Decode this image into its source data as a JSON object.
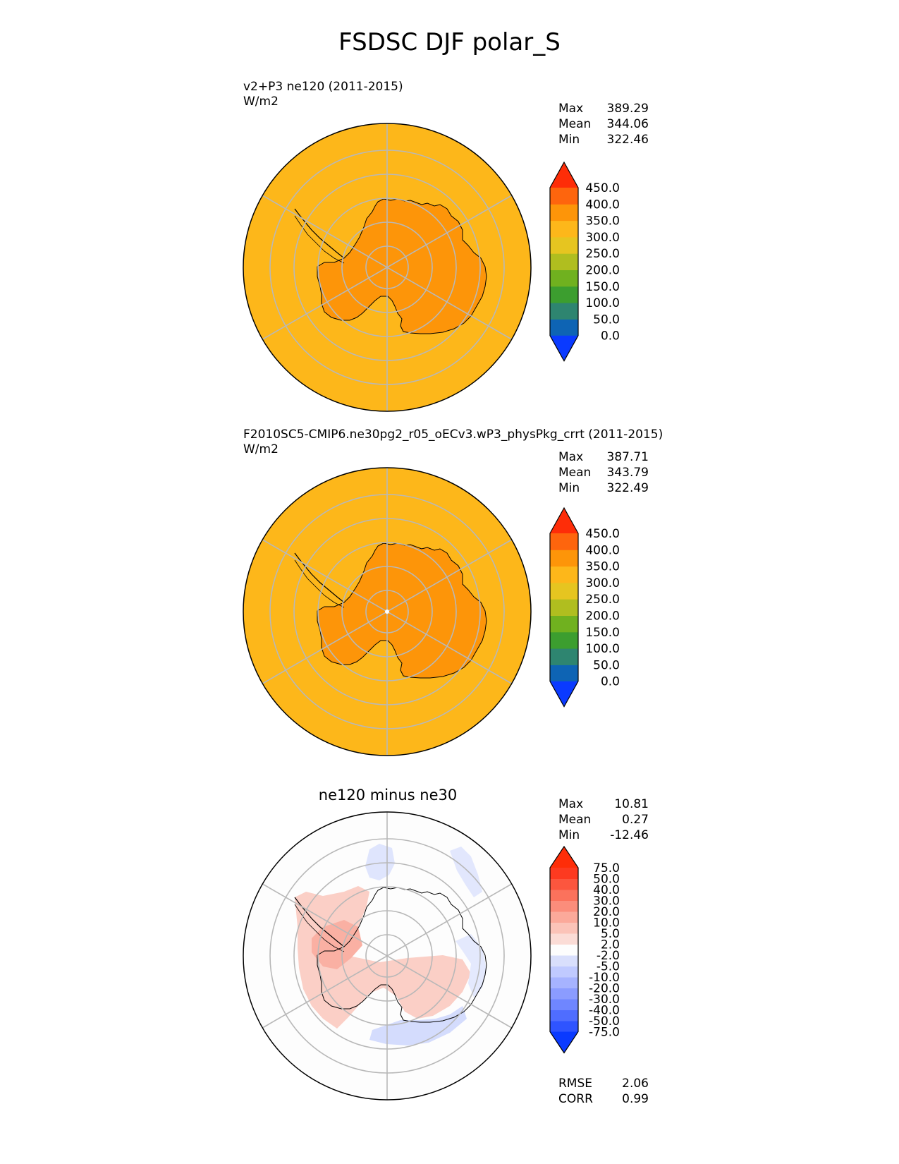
{
  "title": "FSDSC DJF polar_S",
  "panels": [
    {
      "id": "test",
      "title": "v2+P3 ne120 (2011-2015)",
      "units": "W/m2",
      "stats": {
        "max_label": "Max",
        "max": "389.29",
        "mean_label": "Mean",
        "mean": "344.06",
        "min_label": "Min",
        "min": "322.46"
      },
      "ocean_color": "#fdb71a",
      "land_color": "#fd9509",
      "colorbar": {
        "colors": [
          "#0a3aff",
          "#0e64b4",
          "#2e8570",
          "#3c9e2f",
          "#70b11f",
          "#b0be1f",
          "#e6c520",
          "#fdb71a",
          "#fd9509",
          "#fe650d",
          "#fe2d08"
        ],
        "labels": [
          "0.0",
          "50.0",
          "100.0",
          "150.0",
          "200.0",
          "250.0",
          "300.0",
          "350.0",
          "400.0",
          "450.0"
        ]
      }
    },
    {
      "id": "reference",
      "title": "F2010SC5-CMIP6.ne30pg2_r05_oECv3.wP3_physPkg_crrt (2011-2015)",
      "units": "W/m2",
      "stats": {
        "max_label": "Max",
        "max": "387.71",
        "mean_label": "Mean",
        "mean": "343.79",
        "min_label": "Min",
        "min": "322.49"
      },
      "ocean_color": "#fdb71a",
      "land_color": "#fd9509",
      "colorbar": {
        "colors": [
          "#0a3aff",
          "#0e64b4",
          "#2e8570",
          "#3c9e2f",
          "#70b11f",
          "#b0be1f",
          "#e6c520",
          "#fdb71a",
          "#fd9509",
          "#fe650d",
          "#fe2d08"
        ],
        "labels": [
          "0.0",
          "50.0",
          "100.0",
          "150.0",
          "200.0",
          "250.0",
          "300.0",
          "350.0",
          "400.0",
          "450.0"
        ]
      }
    },
    {
      "id": "difference",
      "title": "ne120 minus ne30",
      "stats": {
        "max_label": "Max",
        "max": "10.81",
        "mean_label": "Mean",
        "mean": "0.27",
        "min_label": "Min",
        "min": "-12.46"
      },
      "extra": {
        "rmse_label": "RMSE",
        "rmse": "2.06",
        "corr_label": "CORR",
        "corr": "0.99"
      },
      "colorbar": {
        "colors": [
          "#0a3aff",
          "#2f54ff",
          "#4f6dff",
          "#6f86ff",
          "#8b9cff",
          "#a6b3ff",
          "#c0caff",
          "#d9dffc",
          "#fdfdfd",
          "#fbdcd6",
          "#fbc3b8",
          "#fba99a",
          "#fb8d7b",
          "#fb725c",
          "#fc563e",
          "#fd3a20",
          "#fe2d08"
        ],
        "labels": [
          "-75.0",
          "-50.0",
          "-40.0",
          "-30.0",
          "-20.0",
          "-10.0",
          "-5.0",
          "-2.0",
          "2.0",
          "5.0",
          "10.0",
          "20.0",
          "30.0",
          "40.0",
          "50.0",
          "75.0"
        ]
      }
    }
  ]
}
